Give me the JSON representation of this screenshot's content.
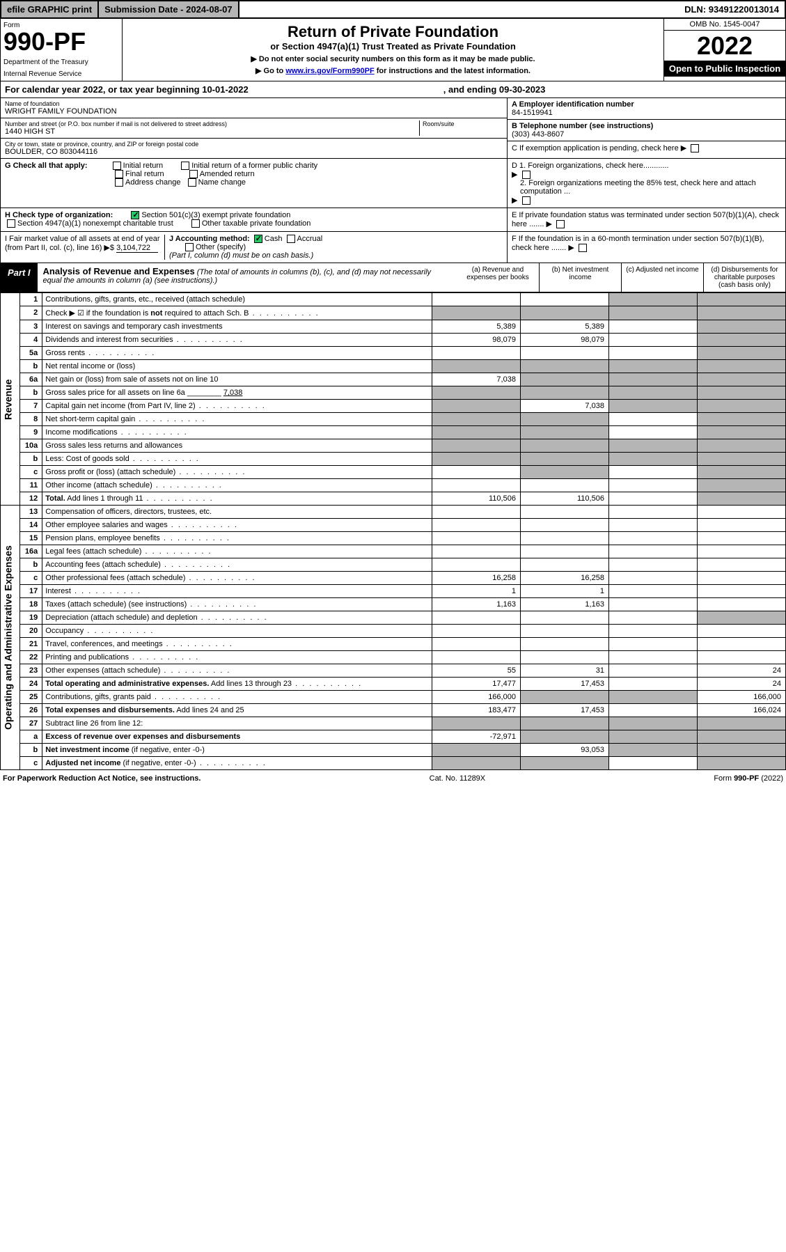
{
  "topbar": {
    "efile": "efile GRAPHIC print",
    "subdate_lbl": "Submission Date - ",
    "subdate": "2024-08-07",
    "dln_lbl": "DLN: ",
    "dln": "93491220013014"
  },
  "hdr": {
    "form": "Form",
    "num": "990-PF",
    "dept": "Department of the Treasury",
    "irs": "Internal Revenue Service",
    "title": "Return of Private Foundation",
    "sub": "or Section 4947(a)(1) Trust Treated as Private Foundation",
    "note1": "▶ Do not enter social security numbers on this form as it may be made public.",
    "note2": "▶ Go to ",
    "link": "www.irs.gov/Form990PF",
    "note2b": " for instructions and the latest information.",
    "omb": "OMB No. 1545-0047",
    "year": "2022",
    "open": "Open to Public Inspection"
  },
  "cal": {
    "a": "For calendar year 2022, or tax year beginning 10-01-2022",
    "b": ", and ending 09-30-2023"
  },
  "name": {
    "lbl": "Name of foundation",
    "val": "WRIGHT FAMILY FOUNDATION"
  },
  "addr": {
    "lbl": "Number and street (or P.O. box number if mail is not delivered to street address)",
    "val": "1440 HIGH ST",
    "room_lbl": "Room/suite"
  },
  "city": {
    "lbl": "City or town, state or province, country, and ZIP or foreign postal code",
    "val": "BOULDER, CO  803044116"
  },
  "ein": {
    "lbl": "A Employer identification number",
    "val": "84-1519941"
  },
  "tel": {
    "lbl": "B Telephone number (see instructions)",
    "val": "(303) 443-8607"
  },
  "c": {
    "txt": "C If exemption application is pending, check here"
  },
  "g": {
    "lbl": "G Check all that apply:",
    "o1": "Initial return",
    "o2": "Final return",
    "o3": "Address change",
    "o4": "Initial return of a former public charity",
    "o5": "Amended return",
    "o6": "Name change"
  },
  "d": {
    "d1": "D 1. Foreign organizations, check here............",
    "d2": "2. Foreign organizations meeting the 85% test, check here and attach computation ..."
  },
  "h": {
    "lbl": "H Check type of organization:",
    "o1": "Section 501(c)(3) exempt private foundation",
    "o2": "Section 4947(a)(1) nonexempt charitable trust",
    "o3": "Other taxable private foundation"
  },
  "e": {
    "txt": "E If private foundation status was terminated under section 507(b)(1)(A), check here ......."
  },
  "i": {
    "lbl": "I Fair market value of all assets at end of year (from Part II, col. (c), line 16) ▶$ ",
    "val": "3,104,722"
  },
  "j": {
    "lbl": "J Accounting method:",
    "o1": "Cash",
    "o2": "Accrual",
    "o3": "Other (specify)",
    "note": "(Part I, column (d) must be on cash basis.)"
  },
  "f": {
    "txt": "F If the foundation is in a 60-month termination under section 507(b)(1)(B), check here ......."
  },
  "part1": {
    "lbl": "Part I",
    "title": "Analysis of Revenue and Expenses",
    "note": "(The total of amounts in columns (b), (c), and (d) may not necessarily equal the amounts in column (a) (see instructions).)",
    "ca": "(a) Revenue and expenses per books",
    "cb": "(b) Net investment income",
    "cc": "(c) Adjusted net income",
    "cd": "(d) Disbursements for charitable purposes (cash basis only)"
  },
  "rows": [
    {
      "s": "Revenue",
      "n": "1",
      "d": "Contributions, gifts, grants, etc., received (attach schedule)",
      "a": "",
      "b": "",
      "c": "s",
      "dd": "s"
    },
    {
      "n": "2",
      "d": "Check ▶ ☑ if the foundation is <b>not</b> required to attach Sch. B",
      "dot": 1,
      "a": "s",
      "b": "s",
      "c": "s",
      "dd": "s"
    },
    {
      "n": "3",
      "d": "Interest on savings and temporary cash investments",
      "a": "5,389",
      "b": "5,389",
      "c": "",
      "dd": "s"
    },
    {
      "n": "4",
      "d": "Dividends and interest from securities",
      "dot": 1,
      "a": "98,079",
      "b": "98,079",
      "c": "",
      "dd": "s"
    },
    {
      "n": "5a",
      "d": "Gross rents",
      "dot": 1,
      "a": "",
      "b": "",
      "c": "",
      "dd": "s"
    },
    {
      "n": "b",
      "d": "Net rental income or (loss)",
      "a": "s",
      "b": "s",
      "c": "s",
      "dd": "s"
    },
    {
      "n": "6a",
      "d": "Net gain or (loss) from sale of assets not on line 10",
      "a": "7,038",
      "b": "s",
      "c": "s",
      "dd": "s"
    },
    {
      "n": "b",
      "d": "Gross sales price for all assets on line 6a ________ <u>7,038</u>",
      "a": "s",
      "b": "s",
      "c": "s",
      "dd": "s"
    },
    {
      "n": "7",
      "d": "Capital gain net income (from Part IV, line 2)",
      "dot": 1,
      "a": "s",
      "b": "7,038",
      "c": "s",
      "dd": "s"
    },
    {
      "n": "8",
      "d": "Net short-term capital gain",
      "dot": 1,
      "a": "s",
      "b": "s",
      "c": "",
      "dd": "s"
    },
    {
      "n": "9",
      "d": "Income modifications",
      "dot": 1,
      "a": "s",
      "b": "s",
      "c": "",
      "dd": "s"
    },
    {
      "n": "10a",
      "d": "Gross sales less returns and allowances",
      "a": "s",
      "b": "s",
      "c": "s",
      "dd": "s"
    },
    {
      "n": "b",
      "d": "Less: Cost of goods sold",
      "dot": 1,
      "a": "s",
      "b": "s",
      "c": "s",
      "dd": "s"
    },
    {
      "n": "c",
      "d": "Gross profit or (loss) (attach schedule)",
      "dot": 1,
      "a": "",
      "b": "s",
      "c": "",
      "dd": "s"
    },
    {
      "n": "11",
      "d": "Other income (attach schedule)",
      "dot": 1,
      "a": "",
      "b": "",
      "c": "",
      "dd": "s"
    },
    {
      "n": "12",
      "d": "<b>Total.</b> Add lines 1 through 11",
      "dot": 1,
      "a": "110,506",
      "b": "110,506",
      "c": "",
      "dd": "s"
    },
    {
      "s": "Operating and Administrative Expenses",
      "n": "13",
      "d": "Compensation of officers, directors, trustees, etc.",
      "a": "",
      "b": "",
      "c": "",
      "dd": ""
    },
    {
      "n": "14",
      "d": "Other employee salaries and wages",
      "dot": 1,
      "a": "",
      "b": "",
      "c": "",
      "dd": ""
    },
    {
      "n": "15",
      "d": "Pension plans, employee benefits",
      "dot": 1,
      "a": "",
      "b": "",
      "c": "",
      "dd": ""
    },
    {
      "n": "16a",
      "d": "Legal fees (attach schedule)",
      "dot": 1,
      "a": "",
      "b": "",
      "c": "",
      "dd": ""
    },
    {
      "n": "b",
      "d": "Accounting fees (attach schedule)",
      "dot": 1,
      "a": "",
      "b": "",
      "c": "",
      "dd": ""
    },
    {
      "n": "c",
      "d": "Other professional fees (attach schedule)",
      "dot": 1,
      "a": "16,258",
      "b": "16,258",
      "c": "",
      "dd": ""
    },
    {
      "n": "17",
      "d": "Interest",
      "dot": 1,
      "a": "1",
      "b": "1",
      "c": "",
      "dd": ""
    },
    {
      "n": "18",
      "d": "Taxes (attach schedule) (see instructions)",
      "dot": 1,
      "a": "1,163",
      "b": "1,163",
      "c": "",
      "dd": ""
    },
    {
      "n": "19",
      "d": "Depreciation (attach schedule) and depletion",
      "dot": 1,
      "a": "",
      "b": "",
      "c": "",
      "dd": "s"
    },
    {
      "n": "20",
      "d": "Occupancy",
      "dot": 1,
      "a": "",
      "b": "",
      "c": "",
      "dd": ""
    },
    {
      "n": "21",
      "d": "Travel, conferences, and meetings",
      "dot": 1,
      "a": "",
      "b": "",
      "c": "",
      "dd": ""
    },
    {
      "n": "22",
      "d": "Printing and publications",
      "dot": 1,
      "a": "",
      "b": "",
      "c": "",
      "dd": ""
    },
    {
      "n": "23",
      "d": "Other expenses (attach schedule)",
      "dot": 1,
      "a": "55",
      "b": "31",
      "c": "",
      "dd": "24"
    },
    {
      "n": "24",
      "d": "<b>Total operating and administrative expenses.</b> Add lines 13 through 23",
      "dot": 1,
      "a": "17,477",
      "b": "17,453",
      "c": "",
      "dd": "24"
    },
    {
      "n": "25",
      "d": "Contributions, gifts, grants paid",
      "dot": 1,
      "a": "166,000",
      "b": "s",
      "c": "s",
      "dd": "166,000"
    },
    {
      "n": "26",
      "d": "<b>Total expenses and disbursements.</b> Add lines 24 and 25",
      "a": "183,477",
      "b": "17,453",
      "c": "",
      "dd": "166,024"
    },
    {
      "n": "27",
      "d": "Subtract line 26 from line 12:",
      "a": "s",
      "b": "s",
      "c": "s",
      "dd": "s"
    },
    {
      "n": "a",
      "d": "<b>Excess of revenue over expenses and disbursements</b>",
      "a": "-72,971",
      "b": "s",
      "c": "s",
      "dd": "s"
    },
    {
      "n": "b",
      "d": "<b>Net investment income</b> (if negative, enter -0-)",
      "a": "s",
      "b": "93,053",
      "c": "s",
      "dd": "s"
    },
    {
      "n": "c",
      "d": "<b>Adjusted net income</b> (if negative, enter -0-)",
      "dot": 1,
      "a": "s",
      "b": "s",
      "c": "",
      "dd": "s"
    }
  ],
  "foot": {
    "l": "For Paperwork Reduction Act Notice, see instructions.",
    "c": "Cat. No. 11289X",
    "r": "Form 990-PF (2022)"
  }
}
